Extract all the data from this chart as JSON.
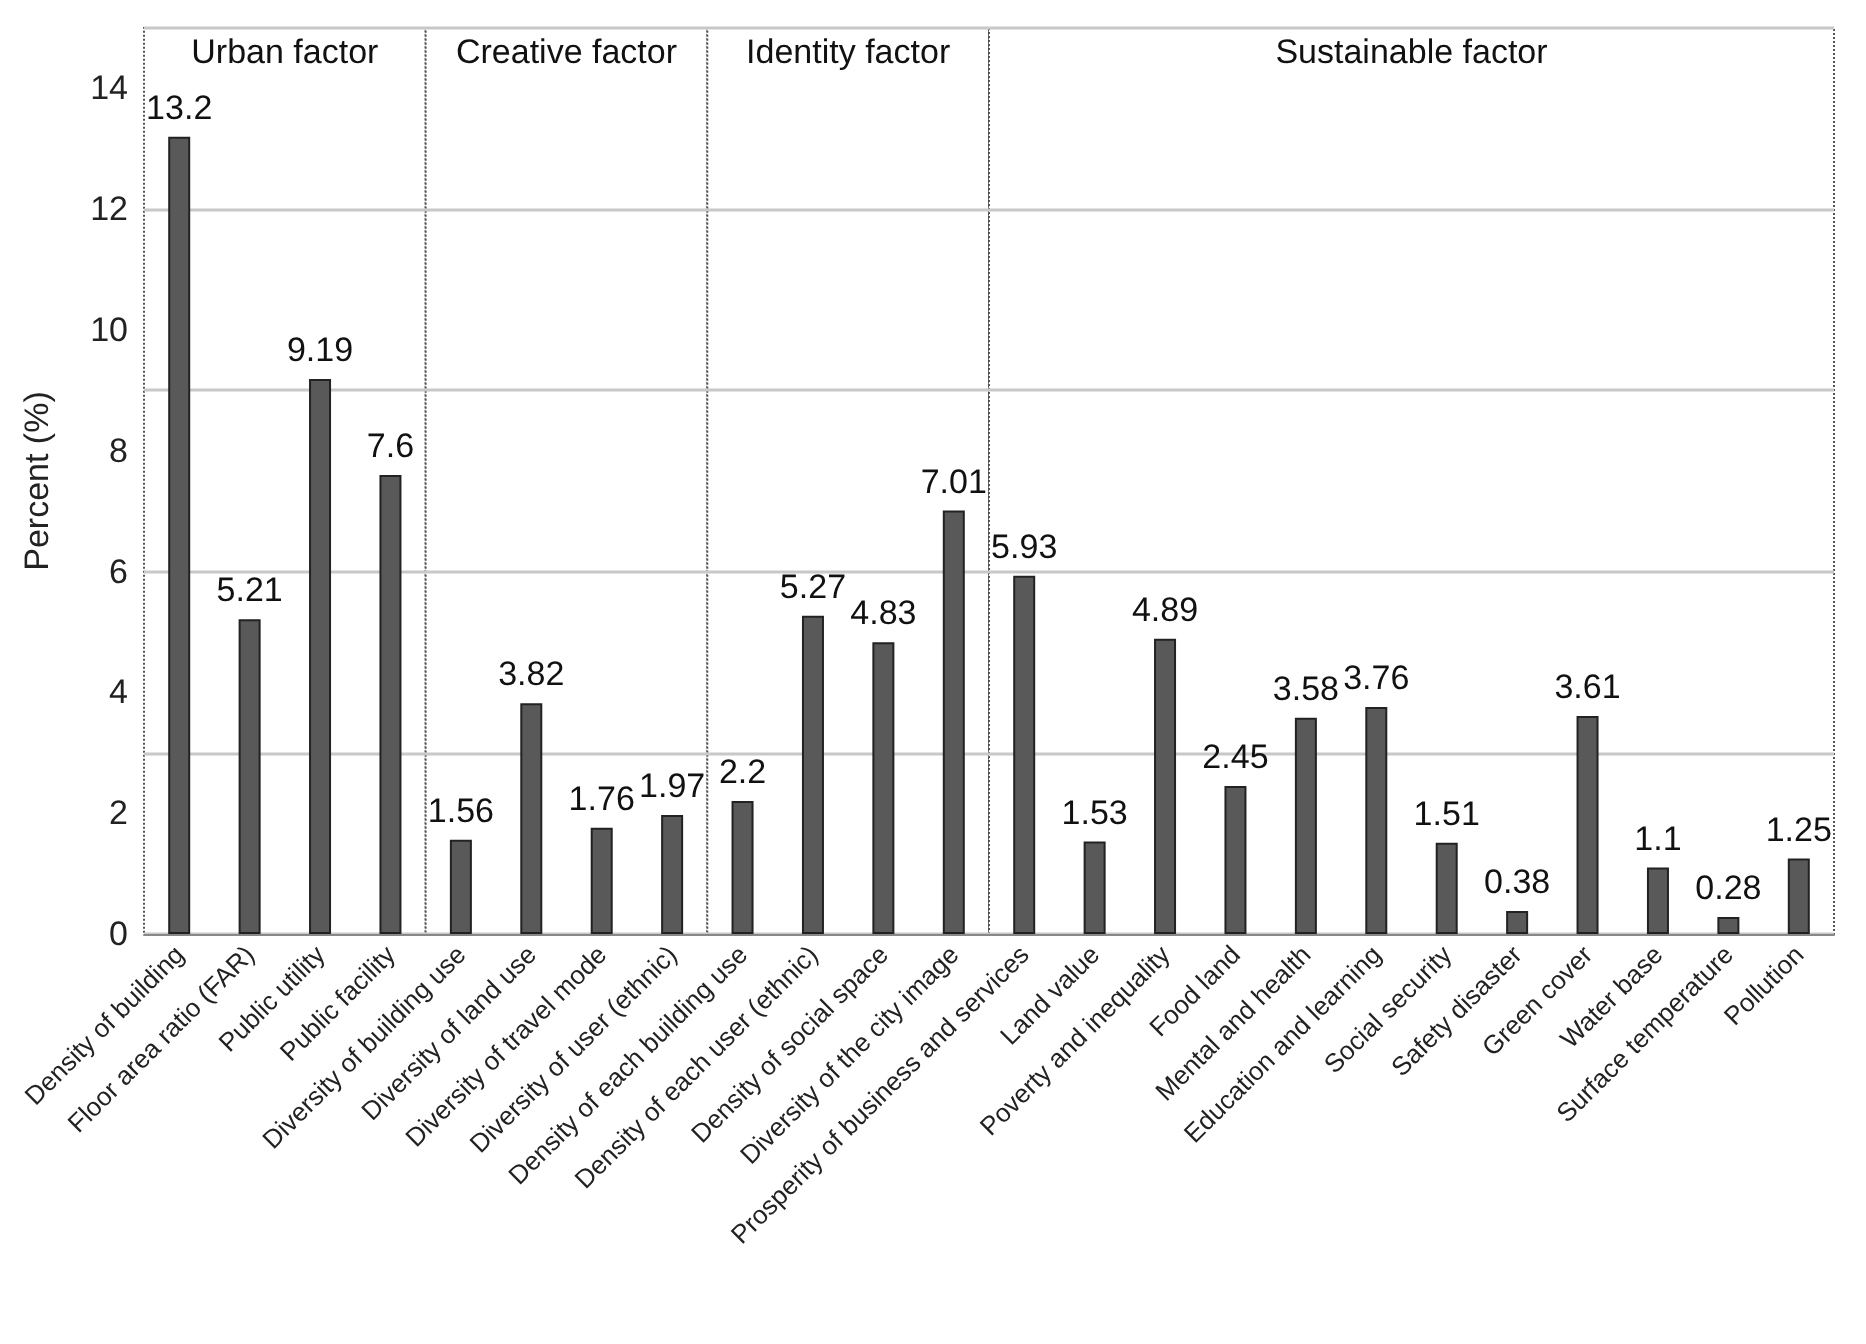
{
  "chart_data": {
    "type": "bar",
    "ylabel": "Percent (%)",
    "categories": [
      "Density of building",
      "Floor area ratio (FAR)",
      "Public utility",
      "Public facility",
      "Diversity of building use",
      "Diversity of land use",
      "Diversity of travel mode",
      "Diversity of user (ethnic)",
      "Density of each building use",
      "Density of each user (ethnic)",
      "Density of social space",
      "Diversity of the city image",
      "Prosperity of business and services",
      "Land value",
      "Poverty and inequality",
      "Food land",
      "Mental and health",
      "Education and learning",
      "Social security",
      "Safety disaster",
      "Green cover",
      "Water base",
      "Surface temperature",
      "Pollution"
    ],
    "values": [
      13.2,
      5.21,
      9.19,
      7.6,
      1.56,
      3.82,
      1.76,
      1.97,
      2.2,
      5.27,
      4.83,
      7.01,
      5.93,
      1.53,
      4.89,
      2.45,
      3.58,
      3.76,
      1.51,
      0.38,
      3.61,
      1.1,
      0.28,
      1.25
    ],
    "color": "#595959",
    "data_labels": true,
    "ylim": [
      0,
      15
    ],
    "yticks": [
      0,
      2,
      4,
      6,
      8,
      10,
      12,
      14
    ],
    "grid": "y",
    "bands": [
      {
        "axis": "x",
        "from": "Density of building",
        "to": "Public facility",
        "label": "Urban factor",
        "color": "#ffffff"
      },
      {
        "axis": "x",
        "from": "Diversity of building use",
        "to": "Diversity of user (ethnic)",
        "label": "Creative factor",
        "color": "#ffffff"
      },
      {
        "axis": "x",
        "from": "Density of each building use",
        "to": "Diversity of the city image",
        "label": "Identity factor",
        "color": "#ffffff"
      },
      {
        "axis": "x",
        "from": "Prosperity of business and services",
        "to": "Pollution",
        "label": "Sustainable factor",
        "color": "#ffffff"
      }
    ]
  }
}
